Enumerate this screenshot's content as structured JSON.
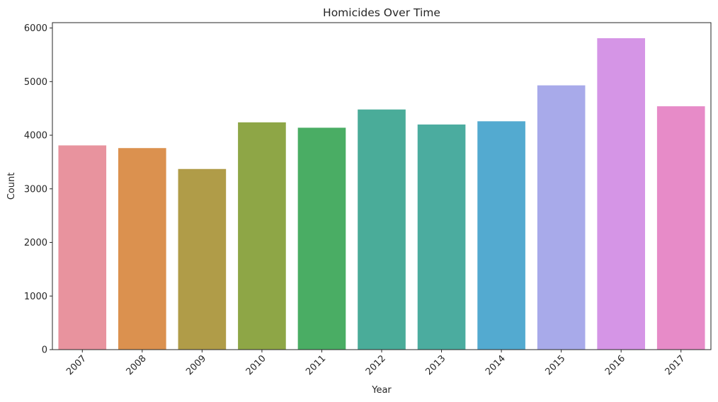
{
  "chart_data": {
    "type": "bar",
    "title": "Homicides Over Time",
    "xlabel": "Year",
    "ylabel": "Count",
    "categories": [
      "2007",
      "2008",
      "2009",
      "2010",
      "2011",
      "2012",
      "2013",
      "2014",
      "2015",
      "2016",
      "2017"
    ],
    "values": [
      3810,
      3760,
      3370,
      4240,
      4140,
      4480,
      4200,
      4260,
      4930,
      5810,
      4540
    ],
    "colors": [
      "#e8939e",
      "#db914f",
      "#b09c48",
      "#8ea646",
      "#4aad64",
      "#4aac99",
      "#4bac9f",
      "#53aad0",
      "#a8aaea",
      "#d595e6",
      "#e78bc8"
    ],
    "ylim": [
      0,
      6100
    ],
    "yticks": [
      0,
      1000,
      2000,
      3000,
      4000,
      5000,
      6000
    ],
    "grid": false,
    "legend": "none"
  }
}
